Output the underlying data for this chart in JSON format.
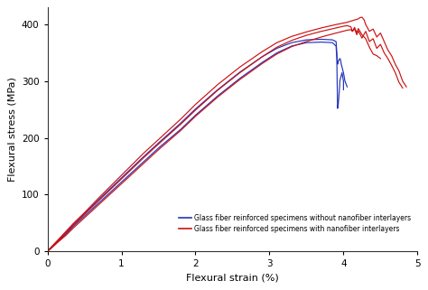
{
  "title": "",
  "xlabel": "Flexural strain (%)",
  "ylabel": "Flexural stress (MPa)",
  "xlim": [
    0,
    5
  ],
  "ylim": [
    0,
    430
  ],
  "xticks": [
    0,
    1,
    2,
    3,
    4,
    5
  ],
  "yticks": [
    0,
    100,
    200,
    300,
    400
  ],
  "blue_color": "#2233bb",
  "red_color": "#cc1111",
  "bg_color": "#ffffff",
  "legend_labels": [
    "Glass fiber reinforced specimens without nanofiber interlayers",
    "Glass fiber reinforced specimens with nanofiber interlayers"
  ],
  "blue_curves": [
    {
      "x": [
        0,
        0.05,
        0.15,
        0.25,
        0.35,
        0.5,
        0.7,
        0.9,
        1.1,
        1.3,
        1.5,
        1.8,
        2.0,
        2.3,
        2.6,
        2.9,
        3.1,
        3.3,
        3.5,
        3.7,
        3.85,
        3.9,
        3.91,
        3.92,
        3.93,
        3.95,
        3.95,
        3.97,
        3.98,
        4.0,
        4.0
      ],
      "y": [
        0,
        6,
        18,
        30,
        44,
        62,
        86,
        110,
        134,
        158,
        182,
        215,
        240,
        274,
        305,
        333,
        350,
        362,
        368,
        369,
        368,
        362,
        340,
        252,
        260,
        295,
        300,
        310,
        315,
        300,
        285
      ]
    },
    {
      "x": [
        0,
        0.05,
        0.15,
        0.25,
        0.35,
        0.5,
        0.7,
        0.9,
        1.1,
        1.3,
        1.5,
        1.8,
        2.0,
        2.3,
        2.6,
        2.9,
        3.1,
        3.3,
        3.5,
        3.7,
        3.85,
        3.9,
        3.91,
        3.92,
        3.93,
        3.95,
        3.96,
        3.97,
        4.0,
        4.02,
        4.05
      ],
      "y": [
        0,
        7,
        20,
        33,
        47,
        66,
        92,
        117,
        142,
        167,
        191,
        226,
        251,
        285,
        316,
        343,
        358,
        368,
        373,
        374,
        373,
        370,
        350,
        330,
        335,
        340,
        338,
        330,
        315,
        300,
        290
      ]
    }
  ],
  "red_curves": [
    {
      "x": [
        0,
        0.05,
        0.15,
        0.25,
        0.35,
        0.5,
        0.7,
        0.9,
        1.1,
        1.3,
        1.5,
        1.8,
        2.0,
        2.3,
        2.6,
        2.9,
        3.1,
        3.3,
        3.5,
        3.7,
        3.9,
        4.0,
        4.05,
        4.1,
        4.12,
        4.15,
        4.18,
        4.2,
        4.25,
        4.3,
        4.35,
        4.4,
        4.45,
        4.5
      ],
      "y": [
        0,
        6,
        19,
        32,
        46,
        65,
        90,
        115,
        140,
        165,
        189,
        224,
        249,
        284,
        315,
        343,
        360,
        372,
        381,
        388,
        394,
        397,
        398,
        396,
        388,
        395,
        385,
        393,
        382,
        375,
        360,
        348,
        345,
        340
      ]
    },
    {
      "x": [
        0,
        0.05,
        0.15,
        0.25,
        0.35,
        0.5,
        0.7,
        0.9,
        1.1,
        1.3,
        1.5,
        1.8,
        2.0,
        2.3,
        2.6,
        2.9,
        3.1,
        3.3,
        3.5,
        3.7,
        3.9,
        4.05,
        4.1,
        4.15,
        4.2,
        4.22,
        4.25,
        4.28,
        4.3,
        4.35,
        4.4,
        4.45,
        4.5,
        4.55,
        4.6,
        4.65,
        4.7,
        4.75,
        4.8,
        4.85
      ],
      "y": [
        0,
        7,
        21,
        35,
        49,
        68,
        95,
        121,
        147,
        173,
        197,
        233,
        259,
        294,
        325,
        352,
        368,
        379,
        387,
        394,
        400,
        404,
        406,
        408,
        410,
        412,
        413,
        408,
        400,
        388,
        392,
        378,
        385,
        370,
        355,
        345,
        330,
        318,
        300,
        290
      ]
    },
    {
      "x": [
        0,
        0.05,
        0.15,
        0.25,
        0.35,
        0.5,
        0.7,
        0.9,
        1.1,
        1.3,
        1.5,
        1.8,
        2.0,
        2.3,
        2.6,
        2.9,
        3.1,
        3.3,
        3.5,
        3.7,
        3.9,
        4.05,
        4.1,
        4.12,
        4.15,
        4.18,
        4.2,
        4.25,
        4.3,
        4.35,
        4.4,
        4.45,
        4.5,
        4.55,
        4.6,
        4.65,
        4.7,
        4.75,
        4.8
      ],
      "y": [
        0,
        5,
        17,
        28,
        41,
        59,
        83,
        107,
        131,
        155,
        179,
        213,
        238,
        272,
        303,
        331,
        348,
        361,
        370,
        378,
        385,
        390,
        391,
        388,
        392,
        382,
        389,
        376,
        388,
        370,
        375,
        358,
        365,
        350,
        340,
        328,
        315,
        298,
        288
      ]
    }
  ]
}
